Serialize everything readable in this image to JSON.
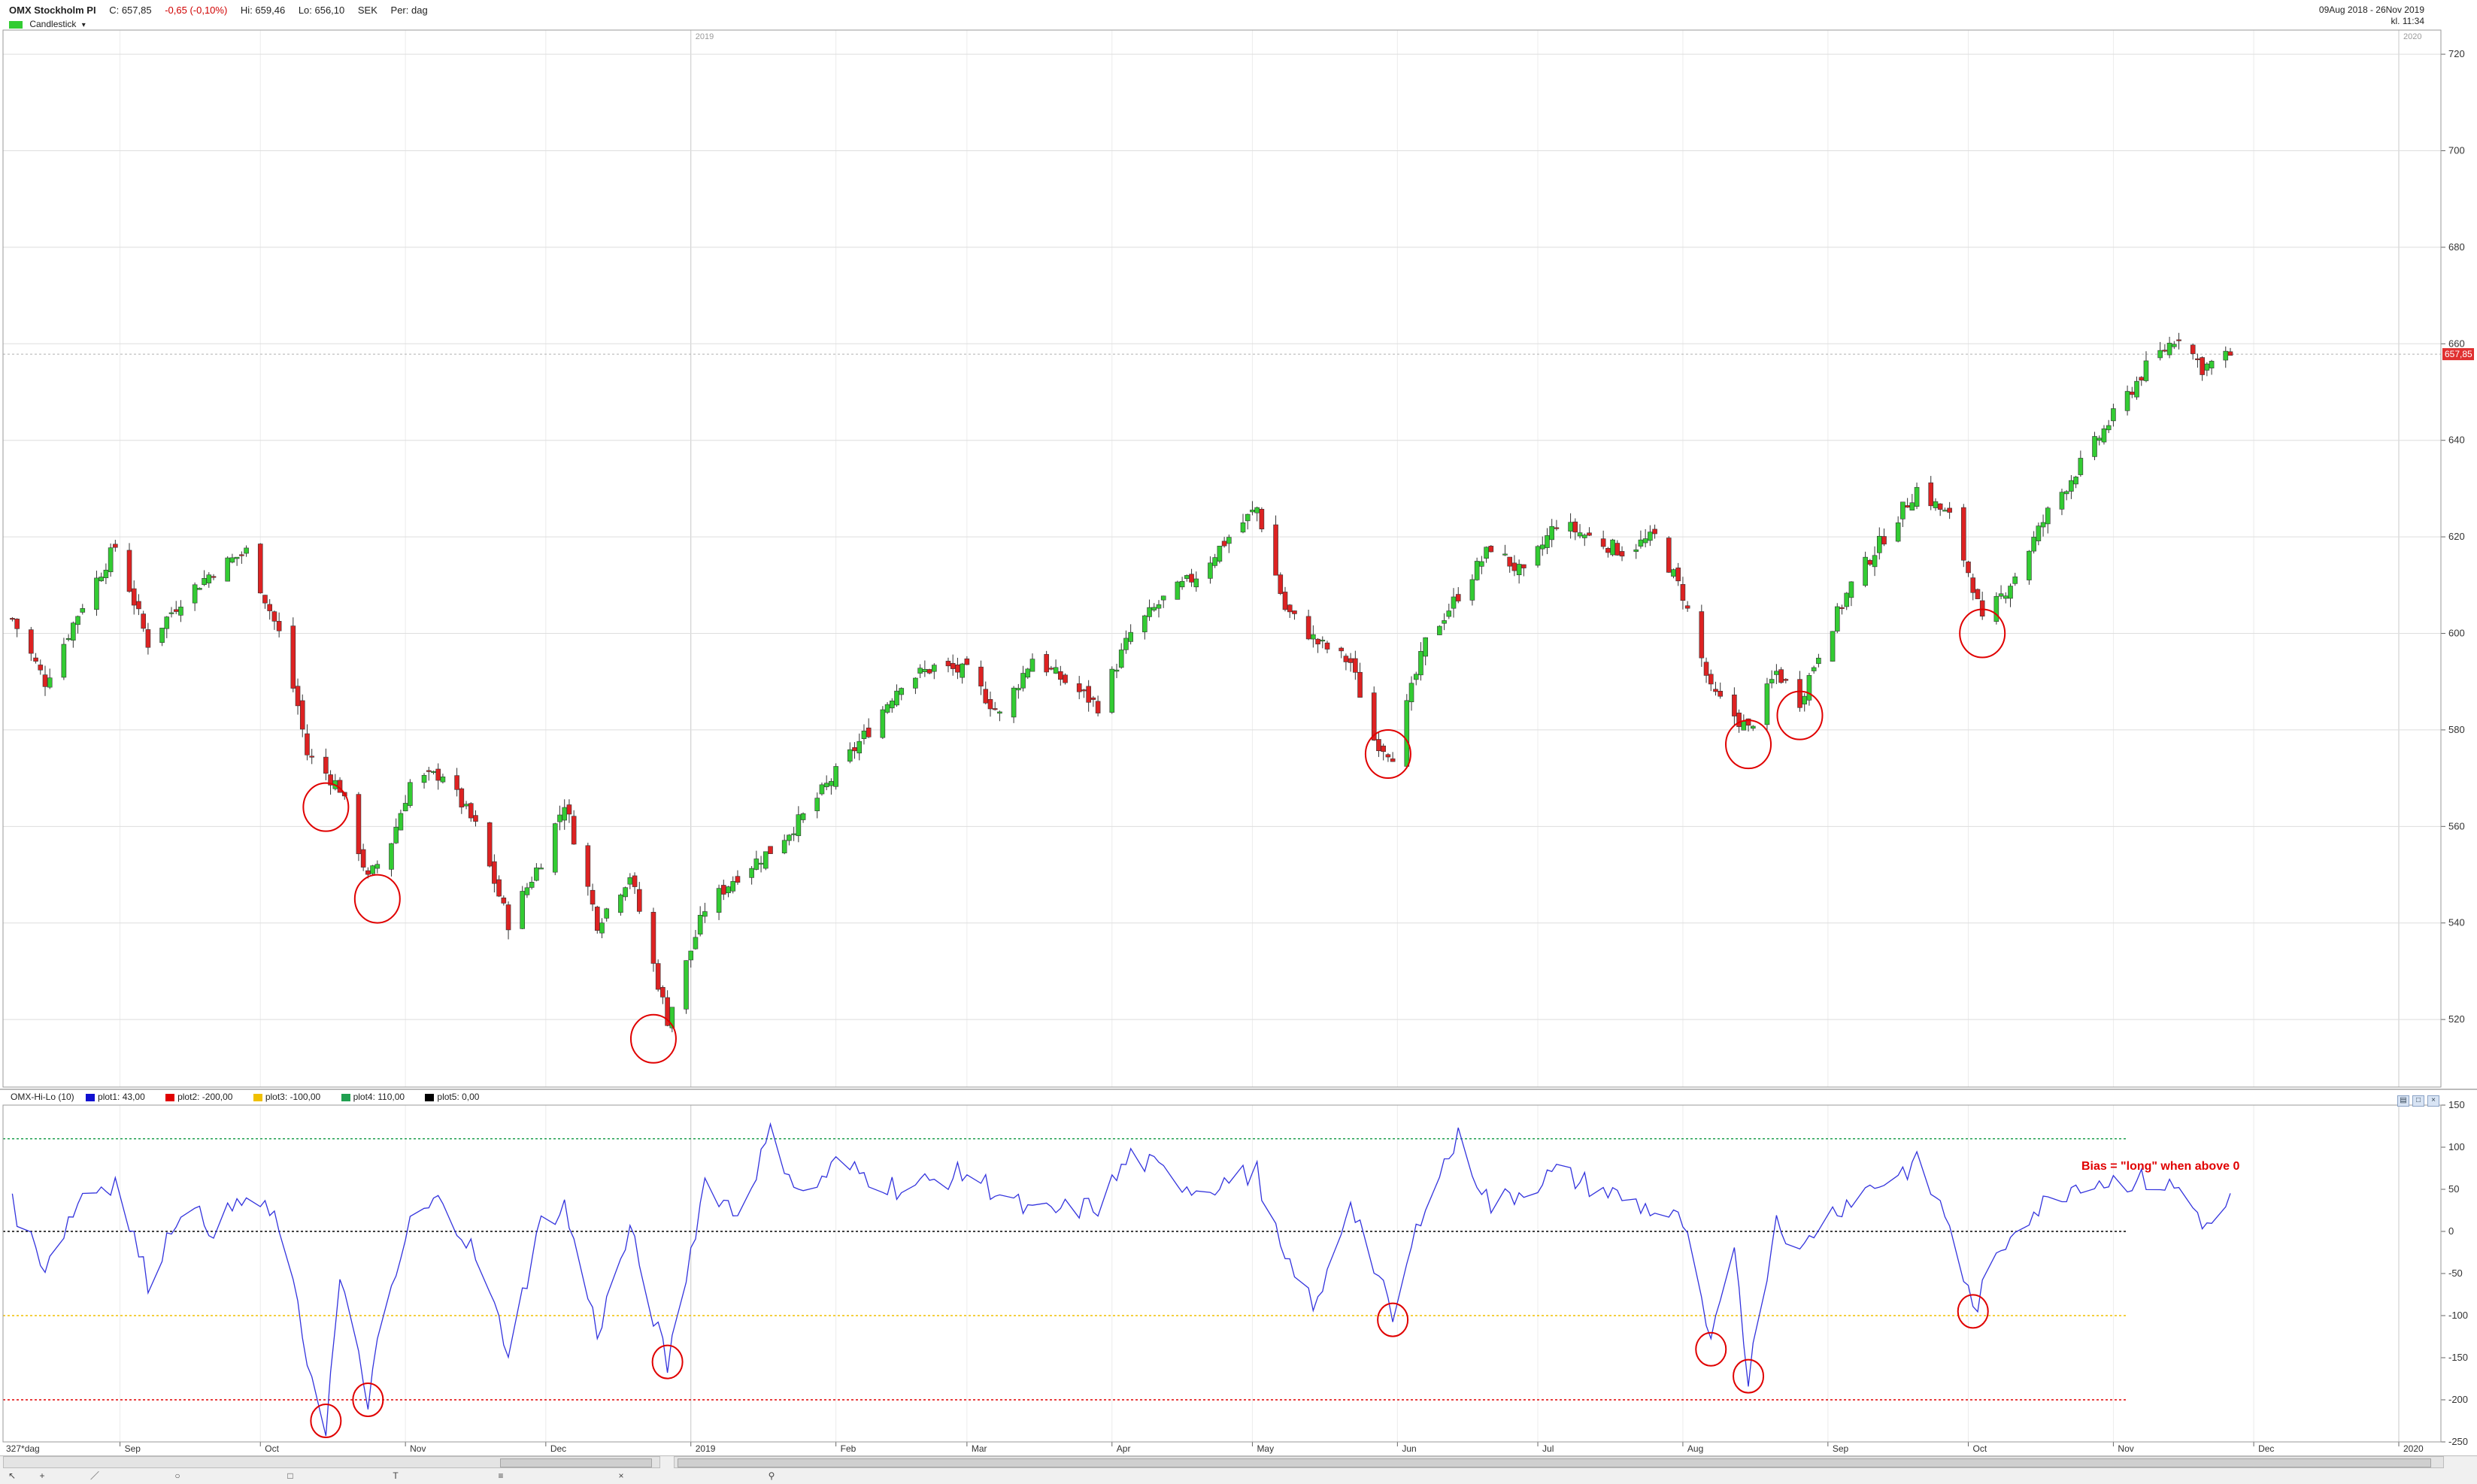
{
  "header": {
    "instrument": "OMX Stockholm PI",
    "close": "C: 657,85",
    "change": "-0,65 (-0,10%)",
    "high": "Hi: 659,46",
    "low": "Lo: 656,10",
    "currency": "SEK",
    "period": "Per: dag",
    "chart_type_label": "Candlestick",
    "chart_type_arrow": "▾",
    "date_range": "09Aug 2018 - 26Nov 2019",
    "time": "kl. 11:34"
  },
  "colors": {
    "up": "#33cc33",
    "down": "#dd2222",
    "indicator": "#3333dd",
    "circle": "#e00000",
    "grid": "#d8d8d8"
  },
  "indicator_legend": {
    "name": "OMX-Hi-Lo (10)",
    "items": [
      {
        "label": "plot1: 43,00",
        "color": "#1010d0"
      },
      {
        "label": "plot2: -200,00",
        "color": "#e00000"
      },
      {
        "label": "plot3: -100,00",
        "color": "#f0c000"
      },
      {
        "label": "plot4: 110,00",
        "color": "#20a050"
      },
      {
        "label": "plot5: 0,00",
        "color": "#000000"
      }
    ]
  },
  "bias_note": "Bias = \"long\" when above 0",
  "timeline": {
    "period_label": "327*dag",
    "months": [
      "Sep",
      "Oct",
      "Nov",
      "Dec",
      "2019",
      "Feb",
      "Mar",
      "Apr",
      "May",
      "Jun",
      "Jul",
      "Aug",
      "Sep",
      "Oct",
      "Nov",
      "Dec",
      "2020"
    ],
    "year_markers": [
      "2019",
      "2020"
    ]
  },
  "chart_data": [
    {
      "type": "candlestick",
      "title": "OMX Stockholm PI",
      "ylim": [
        506,
        725
      ],
      "yticks": [
        520,
        540,
        560,
        580,
        600,
        620,
        640,
        660,
        680,
        700,
        720
      ],
      "last_price": 657.85,
      "last_price_label": "657,85",
      "grid": true,
      "waypoints": [
        [
          "2018-08-09",
          603
        ],
        [
          "2018-08-16",
          590
        ],
        [
          "2018-08-24",
          606
        ],
        [
          "2018-08-31",
          618
        ],
        [
          "2018-09-07",
          598
        ],
        [
          "2018-09-14",
          607
        ],
        [
          "2018-09-21",
          613
        ],
        [
          "2018-09-28",
          617
        ],
        [
          "2018-10-05",
          600
        ],
        [
          "2018-10-09",
          585
        ],
        [
          "2018-10-11",
          575
        ],
        [
          "2018-10-18",
          568
        ],
        [
          "2018-10-24",
          549
        ],
        [
          "2018-10-29",
          557
        ],
        [
          "2018-11-02",
          569
        ],
        [
          "2018-11-09",
          571
        ],
        [
          "2018-11-16",
          560
        ],
        [
          "2018-11-23",
          540
        ],
        [
          "2018-11-30",
          553
        ],
        [
          "2018-12-05",
          565
        ],
        [
          "2018-12-12",
          540
        ],
        [
          "2018-12-19",
          550
        ],
        [
          "2018-12-27",
          520
        ],
        [
          "2019-01-04",
          543
        ],
        [
          "2019-01-11",
          550
        ],
        [
          "2019-01-18",
          555
        ],
        [
          "2019-01-25",
          562
        ],
        [
          "2019-02-01",
          571
        ],
        [
          "2019-02-08",
          580
        ],
        [
          "2019-02-15",
          590
        ],
        [
          "2019-02-22",
          593
        ],
        [
          "2019-03-01",
          592
        ],
        [
          "2019-03-08",
          583
        ],
        [
          "2019-03-15",
          595
        ],
        [
          "2019-03-22",
          590
        ],
        [
          "2019-03-29",
          585
        ],
        [
          "2019-04-05",
          600
        ],
        [
          "2019-04-12",
          607
        ],
        [
          "2019-04-19",
          612
        ],
        [
          "2019-04-26",
          620
        ],
        [
          "2019-05-02",
          626
        ],
        [
          "2019-05-08",
          605
        ],
        [
          "2019-05-15",
          598
        ],
        [
          "2019-05-22",
          594
        ],
        [
          "2019-05-27",
          578
        ],
        [
          "2019-05-31",
          575
        ],
        [
          "2019-06-07",
          598
        ],
        [
          "2019-06-14",
          608
        ],
        [
          "2019-06-21",
          618
        ],
        [
          "2019-06-28",
          612
        ],
        [
          "2019-07-05",
          623
        ],
        [
          "2019-07-12",
          620
        ],
        [
          "2019-07-19",
          617
        ],
        [
          "2019-07-26",
          620
        ],
        [
          "2019-08-01",
          608
        ],
        [
          "2019-08-07",
          588
        ],
        [
          "2019-08-15",
          580
        ],
        [
          "2019-08-21",
          592
        ],
        [
          "2019-08-26",
          586
        ],
        [
          "2019-08-30",
          596
        ],
        [
          "2019-09-06",
          610
        ],
        [
          "2019-09-13",
          620
        ],
        [
          "2019-09-20",
          630
        ],
        [
          "2019-09-27",
          624
        ],
        [
          "2019-10-02",
          610
        ],
        [
          "2019-10-04",
          602
        ],
        [
          "2019-10-11",
          612
        ],
        [
          "2019-10-18",
          625
        ],
        [
          "2019-10-25",
          635
        ],
        [
          "2019-11-01",
          645
        ],
        [
          "2019-11-08",
          655
        ],
        [
          "2019-11-15",
          662
        ],
        [
          "2019-11-20",
          655
        ],
        [
          "2019-11-26",
          657.85
        ]
      ]
    },
    {
      "type": "line",
      "name": "OMX-Hi-Lo (10)",
      "ylim": [
        -250,
        150
      ],
      "yticks": [
        150,
        100,
        50,
        0,
        -50,
        -100,
        -150,
        -200,
        -250
      ],
      "reference_lines": [
        110,
        0,
        -100,
        -200
      ],
      "waypoints": [
        [
          "2018-08-09",
          30
        ],
        [
          "2018-08-16",
          -40
        ],
        [
          "2018-08-24",
          45
        ],
        [
          "2018-08-31",
          60
        ],
        [
          "2018-09-07",
          -60
        ],
        [
          "2018-09-14",
          30
        ],
        [
          "2018-09-21",
          5
        ],
        [
          "2018-09-28",
          40
        ],
        [
          "2018-10-05",
          10
        ],
        [
          "2018-10-11",
          -150
        ],
        [
          "2018-10-15",
          -230
        ],
        [
          "2018-10-18",
          -60
        ],
        [
          "2018-10-24",
          -200
        ],
        [
          "2018-10-26",
          -140
        ],
        [
          "2018-11-02",
          10
        ],
        [
          "2018-11-09",
          40
        ],
        [
          "2018-11-16",
          -30
        ],
        [
          "2018-11-23",
          -140
        ],
        [
          "2018-11-30",
          10
        ],
        [
          "2018-12-05",
          30
        ],
        [
          "2018-12-12",
          -120
        ],
        [
          "2018-12-19",
          0
        ],
        [
          "2018-12-27",
          -160
        ],
        [
          "2019-01-04",
          60
        ],
        [
          "2019-01-11",
          20
        ],
        [
          "2019-01-18",
          115
        ],
        [
          "2019-01-25",
          40
        ],
        [
          "2019-02-01",
          80
        ],
        [
          "2019-02-15",
          50
        ],
        [
          "2019-03-01",
          70
        ],
        [
          "2019-03-15",
          20
        ],
        [
          "2019-03-29",
          30
        ],
        [
          "2019-04-05",
          90
        ],
        [
          "2019-04-19",
          50
        ],
        [
          "2019-05-02",
          70
        ],
        [
          "2019-05-08",
          -40
        ],
        [
          "2019-05-15",
          -90
        ],
        [
          "2019-05-22",
          40
        ],
        [
          "2019-05-31",
          -105
        ],
        [
          "2019-06-07",
          40
        ],
        [
          "2019-06-14",
          110
        ],
        [
          "2019-06-21",
          30
        ],
        [
          "2019-07-05",
          70
        ],
        [
          "2019-07-19",
          40
        ],
        [
          "2019-08-01",
          10
        ],
        [
          "2019-08-07",
          -140
        ],
        [
          "2019-08-12",
          -10
        ],
        [
          "2019-08-15",
          -175
        ],
        [
          "2019-08-21",
          20
        ],
        [
          "2019-08-26",
          -30
        ],
        [
          "2019-08-30",
          10
        ],
        [
          "2019-09-06",
          40
        ],
        [
          "2019-09-20",
          80
        ],
        [
          "2019-09-27",
          10
        ],
        [
          "2019-10-02",
          -95
        ],
        [
          "2019-10-11",
          10
        ],
        [
          "2019-10-25",
          60
        ],
        [
          "2019-11-08",
          60
        ],
        [
          "2019-11-15",
          50
        ],
        [
          "2019-11-22",
          0
        ],
        [
          "2019-11-26",
          43
        ]
      ]
    }
  ],
  "highlight_circles": [
    {
      "panel": "price",
      "date": "2018-10-15",
      "value": 564
    },
    {
      "panel": "price",
      "date": "2018-10-26",
      "value": 545
    },
    {
      "panel": "price",
      "date": "2018-12-24",
      "value": 516
    },
    {
      "panel": "price",
      "date": "2019-05-30",
      "value": 575
    },
    {
      "panel": "price",
      "date": "2019-08-15",
      "value": 577
    },
    {
      "panel": "price",
      "date": "2019-08-26",
      "value": 583
    },
    {
      "panel": "price",
      "date": "2019-10-04",
      "value": 600
    },
    {
      "panel": "indicator",
      "date": "2018-10-15",
      "value": -225
    },
    {
      "panel": "indicator",
      "date": "2018-10-24",
      "value": -200
    },
    {
      "panel": "indicator",
      "date": "2018-12-27",
      "value": -155
    },
    {
      "panel": "indicator",
      "date": "2019-05-31",
      "value": -105
    },
    {
      "panel": "indicator",
      "date": "2019-08-07",
      "value": -140
    },
    {
      "panel": "indicator",
      "date": "2019-08-15",
      "value": -172
    },
    {
      "panel": "indicator",
      "date": "2019-10-02",
      "value": -95
    }
  ]
}
